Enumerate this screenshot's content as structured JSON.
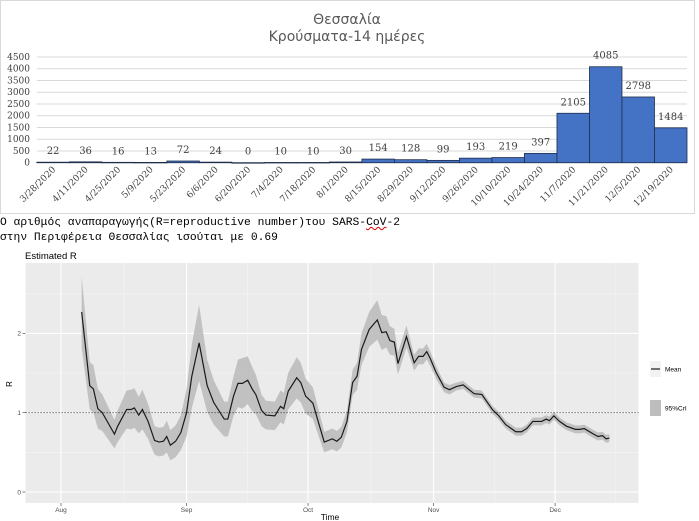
{
  "text": {
    "line1_before": "Ο αριθμός αναπαραγωγής(R=reproductive number)του SARS-",
    "line1_flagged": "CoV",
    "line1_after": "-2",
    "line2": "στην Περιφέρεια Θεσσαλίας ισούται με 0.69"
  },
  "chart_data": [
    {
      "type": "bar",
      "title": "Θεσσαλία",
      "subtitle": "Κρούσματα-14 ημέρες",
      "xlabel": "",
      "ylabel": "",
      "ylim": [
        0,
        4500
      ],
      "yticks": [
        0,
        500,
        1000,
        1500,
        2000,
        2500,
        3000,
        3500,
        4000,
        4500
      ],
      "grid": true,
      "bar_color": "#4472c4",
      "categories": [
        "3/28/2020",
        "4/11/2020",
        "4/25/2020",
        "5/9/2020",
        "5/23/2020",
        "6/6/2020",
        "6/20/2020",
        "7/4/2020",
        "7/18/2020",
        "8/1/2020",
        "8/15/2020",
        "8/29/2020",
        "9/12/2020",
        "9/26/2020",
        "10/10/2020",
        "10/24/2020",
        "11/7/2020",
        "11/21/2020",
        "12/5/2020",
        "12/19/2020"
      ],
      "values": [
        22,
        36,
        16,
        13,
        72,
        24,
        0,
        10,
        10,
        30,
        154,
        128,
        99,
        193,
        219,
        397,
        2105,
        4085,
        2798,
        1484
      ]
    },
    {
      "type": "line",
      "title": "Estimated R",
      "xlabel": "Time",
      "ylabel": "R",
      "x_unit": "days since Aug 1, 2020",
      "xlim": [
        -6,
        144
      ],
      "ylim": [
        -0.15,
        2.9
      ],
      "xticks": [
        {
          "value": 0,
          "label": "Aug"
        },
        {
          "value": 31,
          "label": "Sep"
        },
        {
          "value": 61,
          "label": "Oct"
        },
        {
          "value": 92,
          "label": "Nov"
        },
        {
          "value": 122,
          "label": "Dec"
        }
      ],
      "yticks": [
        0,
        1,
        2
      ],
      "reference_line": 1,
      "legend_position": "right",
      "legend": [
        {
          "label": "Mean",
          "kind": "line"
        },
        {
          "label": "95%CrI",
          "kind": "band"
        }
      ],
      "line_color": "#1a1a1a",
      "band_color": "#bdbdbd",
      "panel_color": "#ebebeb",
      "series": {
        "name": "Mean",
        "x": [
          5.1,
          7.1,
          8,
          9.1,
          10.2,
          13.2,
          14,
          16.2,
          17.3,
          18.1,
          19.2,
          20.1,
          21.5,
          23.1,
          24.2,
          25.3,
          26.1,
          27,
          28.3,
          29.6,
          31,
          32.3,
          34.1,
          36.1,
          37.7,
          40.3,
          41.2,
          42.6,
          43.7,
          44.8,
          46.1,
          47.2,
          48.1,
          49.5,
          50.6,
          52.8,
          54.2,
          55,
          56.1,
          58.2,
          59.2,
          60.4,
          62.2,
          63.5,
          65,
          67,
          68.1,
          69.2,
          70.6,
          72,
          73.1,
          74.2,
          76.1,
          78.1,
          79.2,
          80.3,
          81.2,
          82.3,
          83.2,
          85.3,
          87.2,
          88.3,
          89.4,
          90.3,
          91.2,
          92.6,
          94.6,
          95.9,
          97.6,
          99.3,
          102,
          103.9,
          106.5,
          108.1,
          109.8,
          112.3,
          113.7,
          115,
          116.5,
          118.7,
          119.8,
          120.6,
          121.7,
          123.1,
          124.8,
          127,
          128.1,
          129.2,
          131.5,
          132.6,
          133.7,
          134.6,
          135.4
        ],
        "mean": [
          2.27,
          1.34,
          1.3,
          1.05,
          1.0,
          0.73,
          0.83,
          1.04,
          1.04,
          1.06,
          0.97,
          1.04,
          0.89,
          0.65,
          0.63,
          0.64,
          0.7,
          0.59,
          0.64,
          0.75,
          1.0,
          1.46,
          1.88,
          1.34,
          1.13,
          0.92,
          0.92,
          1.21,
          1.37,
          1.37,
          1.41,
          1.3,
          1.23,
          1.03,
          0.97,
          0.96,
          1.08,
          1.05,
          1.27,
          1.44,
          1.38,
          1.21,
          1.12,
          0.89,
          0.63,
          0.67,
          0.64,
          0.69,
          0.89,
          1.38,
          1.46,
          1.8,
          2.05,
          2.17,
          2.01,
          2.02,
          1.91,
          1.89,
          1.62,
          1.96,
          1.63,
          1.71,
          1.71,
          1.77,
          1.68,
          1.51,
          1.32,
          1.29,
          1.33,
          1.35,
          1.24,
          1.23,
          1.04,
          0.96,
          0.85,
          0.76,
          0.76,
          0.8,
          0.89,
          0.89,
          0.92,
          0.9,
          0.96,
          0.89,
          0.83,
          0.79,
          0.79,
          0.8,
          0.73,
          0.7,
          0.71,
          0.67,
          0.68
        ],
        "ci_half_width": [
          0.45,
          0.3,
          0.3,
          0.25,
          0.23,
          0.18,
          0.2,
          0.24,
          0.25,
          0.25,
          0.23,
          0.25,
          0.22,
          0.18,
          0.18,
          0.18,
          0.2,
          0.19,
          0.2,
          0.22,
          0.3,
          0.4,
          0.48,
          0.33,
          0.28,
          0.22,
          0.22,
          0.25,
          0.3,
          0.32,
          0.3,
          0.28,
          0.25,
          0.2,
          0.18,
          0.18,
          0.2,
          0.2,
          0.23,
          0.26,
          0.25,
          0.22,
          0.2,
          0.17,
          0.13,
          0.13,
          0.13,
          0.13,
          0.14,
          0.16,
          0.17,
          0.2,
          0.22,
          0.25,
          0.22,
          0.2,
          0.18,
          0.17,
          0.14,
          0.14,
          0.1,
          0.1,
          0.1,
          0.1,
          0.09,
          0.08,
          0.06,
          0.06,
          0.05,
          0.05,
          0.05,
          0.05,
          0.05,
          0.05,
          0.05,
          0.05,
          0.05,
          0.05,
          0.05,
          0.05,
          0.05,
          0.05,
          0.05,
          0.05,
          0.05,
          0.05,
          0.05,
          0.05,
          0.05,
          0.05,
          0.05,
          0.05,
          0.05
        ]
      }
    }
  ]
}
